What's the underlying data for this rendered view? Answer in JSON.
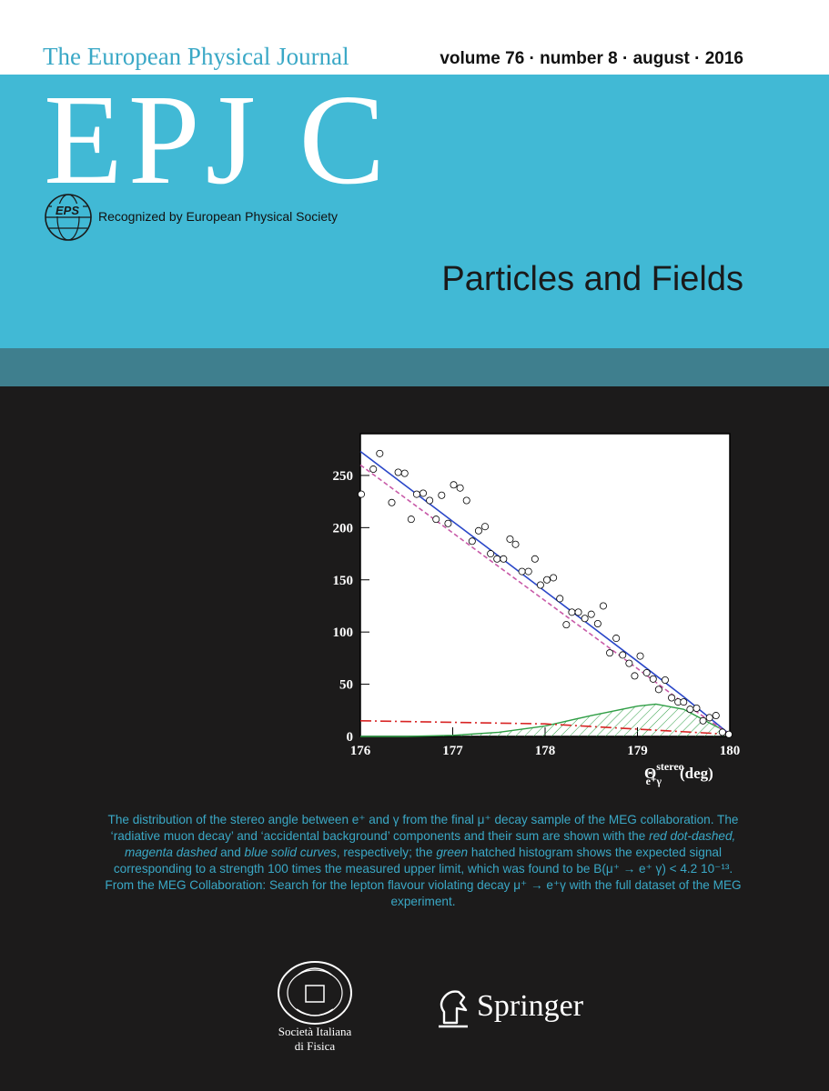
{
  "header": {
    "journal": "The European Physical Journal",
    "issue": "volume 76 · number 8 · august · 2016",
    "logo": "EPJ C",
    "eps_logo": "EPS",
    "eps_text": "Recognized by European Physical Society",
    "series": "Particles and Fields"
  },
  "chart_data": {
    "type": "scatter",
    "xlim": [
      176,
      180
    ],
    "xticks": [
      176,
      177,
      178,
      179,
      180
    ],
    "ylim": [
      0,
      290
    ],
    "yticks": [
      0,
      50,
      100,
      150,
      200,
      250
    ],
    "x_label": {
      "symbol": "Θ",
      "sup": "stereo",
      "sub": "e⁺γ",
      "unit": "(deg)"
    },
    "grid": false,
    "series": [
      {
        "kind": "points",
        "color": "#ffffff",
        "x": [
          176.01,
          176.14,
          176.21,
          176.34,
          176.41,
          176.48,
          176.55,
          176.61,
          176.68,
          176.75,
          176.82,
          176.88,
          176.95,
          177.01,
          177.08,
          177.15,
          177.21,
          177.28,
          177.35,
          177.41,
          177.48,
          177.55,
          177.62,
          177.68,
          177.75,
          177.82,
          177.89,
          177.95,
          178.02,
          178.09,
          178.16,
          178.23,
          178.29,
          178.36,
          178.43,
          178.5,
          178.57,
          178.63,
          178.7,
          178.77,
          178.84,
          178.91,
          178.97,
          179.03,
          179.1,
          179.17,
          179.23,
          179.3,
          179.37,
          179.44,
          179.5,
          179.57,
          179.64,
          179.71,
          179.78,
          179.85,
          179.92,
          179.99
        ],
        "values": [
          232,
          256,
          271,
          224,
          253,
          252,
          208,
          232,
          233,
          226,
          208,
          231,
          204,
          241,
          238,
          226,
          187,
          197,
          201,
          175,
          170,
          170,
          189,
          184,
          158,
          158,
          170,
          145,
          150,
          152,
          132,
          107,
          119,
          119,
          113,
          117,
          108,
          125,
          80,
          94,
          78,
          70,
          58,
          77,
          61,
          55,
          45,
          54,
          37,
          33,
          33,
          26,
          27,
          15,
          18,
          20,
          4,
          2
        ]
      },
      {
        "kind": "line",
        "dash": "solid",
        "color": "#2a47c8",
        "x": [
          176,
          177,
          178,
          179,
          179.5,
          180
        ],
        "values": [
          273,
          206,
          139,
          72,
          38,
          2
        ]
      },
      {
        "kind": "line",
        "dash": "dashed",
        "color": "#c85aa8",
        "x": [
          176,
          177,
          178,
          179,
          179.5,
          180
        ],
        "values": [
          260,
          195,
          130,
          65,
          32,
          2
        ]
      },
      {
        "kind": "line",
        "dash": "dashdot",
        "color": "#d82424",
        "x": [
          176,
          177,
          178,
          179,
          180
        ],
        "values": [
          15,
          13.5,
          12,
          7,
          2
        ]
      },
      {
        "kind": "hatched",
        "color": "#2f9e45",
        "x": [
          176,
          176.5,
          177,
          177.5,
          178,
          178.5,
          179,
          179.2,
          179.5,
          179.8,
          180
        ],
        "values": [
          0,
          0,
          1,
          4,
          10,
          20,
          29,
          31,
          26,
          12,
          3
        ]
      }
    ]
  },
  "caption": [
    {
      "text": "The distribution of the stereo angle between e⁺ and γ from the final μ⁺ decay sample of the MEG collaboration. The ‘radiative muon decay’ and ‘accidental background’ components and their sum are shown with the ",
      "italic": false
    },
    {
      "text": "red dot-dashed, magenta dashed",
      "italic": true
    },
    {
      "text": " and ",
      "italic": false
    },
    {
      "text": "blue solid curves",
      "italic": true
    },
    {
      "text": ", respectively; the ",
      "italic": false
    },
    {
      "text": "green",
      "italic": true
    },
    {
      "text": " hatched histogram shows the expected signal corresponding to a strength 100 times the measured upper limit, which was found to be B(μ⁺ → e⁺ γ) < 4.2 10⁻¹³. From the MEG Collaboration: Search for the lepton flavour violating decay μ⁺ → e⁺γ with the full dataset of the MEG experiment.",
      "italic": false
    }
  ],
  "footer": {
    "sif_line1": "Società Italiana",
    "sif_line2": "di Fisica",
    "publisher": "Springer"
  }
}
